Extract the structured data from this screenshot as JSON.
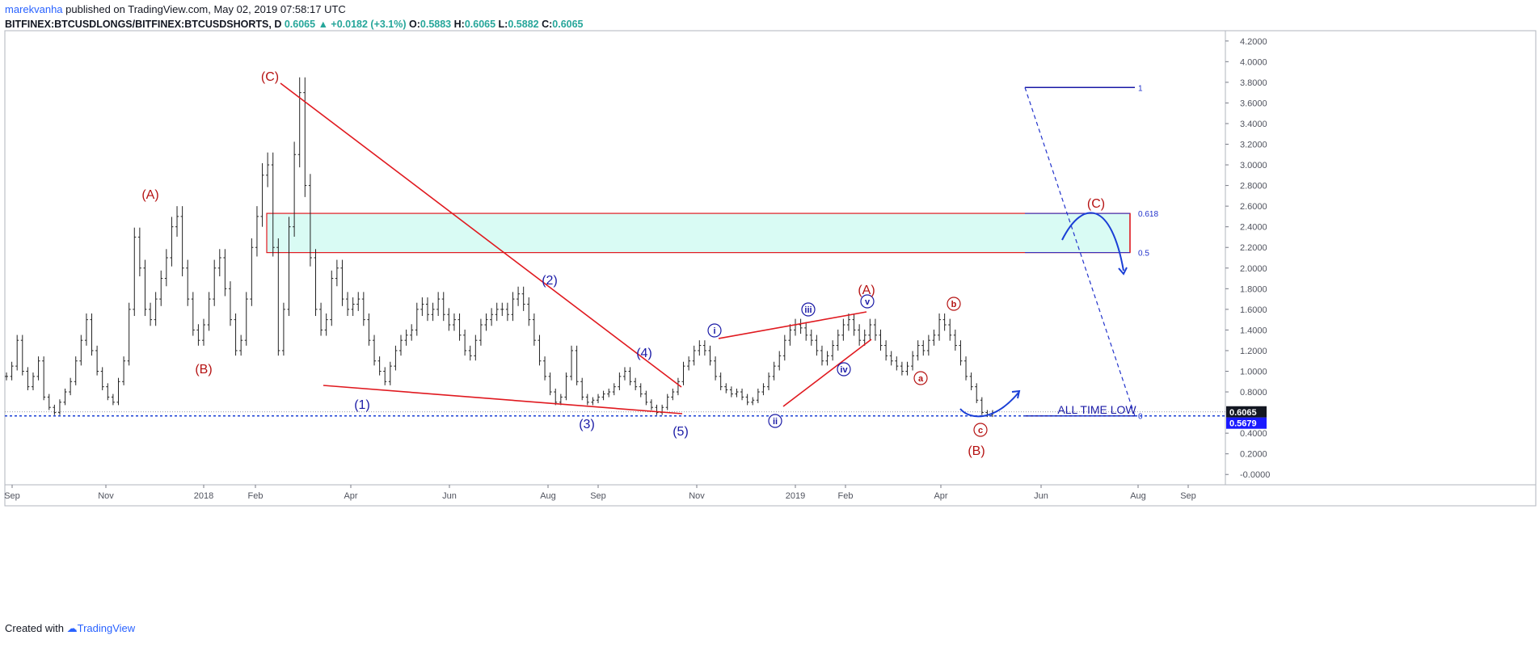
{
  "header": {
    "author": "marekvanha",
    "published_text": " published on TradingView.com, May 02, 2019 07:58:17 UTC",
    "symbol": "BITFINEX:BTCUSDLONGS/BITFINEX:BTCUSDSHORTS, D",
    "last": "0.6065",
    "change": "▲ +0.0182 (+3.1%)",
    "o_label": "O:",
    "o_value": "0.5883",
    "h_label": "H:",
    "h_value": "0.6065",
    "l_label": "L:",
    "l_value": "0.5882",
    "c_label": "C:",
    "c_value": "0.6065"
  },
  "footer": {
    "created_with": "Created with",
    "brand": "TradingView"
  },
  "colors": {
    "red": "#e0191f",
    "blue": "#1a1aa6",
    "zone_fill": "#d9fbf4",
    "dashed": "#2233cc",
    "price_line": "#1a3fd6"
  },
  "chart_data": {
    "type": "line",
    "subtype": "ohlc-bars",
    "ylim": [
      -0.1,
      4.3
    ],
    "y_ticks": [
      "4.2000",
      "4.0000",
      "3.8000",
      "3.6000",
      "3.4000",
      "3.2000",
      "3.0000",
      "2.8000",
      "2.6000",
      "2.4000",
      "2.2000",
      "2.0000",
      "1.8000",
      "1.6000",
      "1.4000",
      "1.2000",
      "1.0000",
      "0.8000",
      "0.4000",
      "0.2000",
      "-0.0000"
    ],
    "x_ticks": [
      "Sep",
      "Nov",
      "2018",
      "Feb",
      "Apr",
      "Jun",
      "Aug",
      "Sep",
      "Nov",
      "2019",
      "Feb",
      "Apr",
      "Jun",
      "Aug",
      "Sep"
    ],
    "series": [
      {
        "values": [
          0.95,
          1.05,
          1.3,
          1.0,
          0.85,
          0.95,
          1.1,
          0.75,
          0.65,
          0.6,
          0.7,
          0.8,
          0.9,
          1.1,
          1.3,
          1.5,
          1.2,
          1.0,
          0.85,
          0.75,
          0.7,
          0.9,
          1.1,
          1.6,
          2.3,
          2.0,
          1.6,
          1.5,
          1.7,
          1.9,
          2.1,
          2.4,
          2.5,
          2.0,
          1.7,
          1.4,
          1.3,
          1.45,
          1.7,
          2.0,
          2.1,
          1.8,
          1.5,
          1.2,
          1.3,
          1.7,
          2.2,
          2.5,
          2.9,
          3.0,
          2.2,
          1.2,
          1.6,
          2.4,
          3.1,
          3.7,
          2.8,
          2.1,
          1.6,
          1.4,
          1.5,
          1.9,
          2.0,
          1.7,
          1.6,
          1.65,
          1.7,
          1.5,
          1.3,
          1.1,
          1.0,
          0.9,
          1.05,
          1.2,
          1.3,
          1.35,
          1.4,
          1.6,
          1.65,
          1.55,
          1.6,
          1.7,
          1.55,
          1.45,
          1.5,
          1.35,
          1.2,
          1.15,
          1.3,
          1.45,
          1.5,
          1.55,
          1.6,
          1.6,
          1.55,
          1.7,
          1.75,
          1.65,
          1.5,
          1.3,
          1.1,
          0.95,
          0.8,
          0.7,
          0.75,
          0.95,
          1.2,
          0.9,
          0.75,
          0.7,
          0.72,
          0.75,
          0.78,
          0.8,
          0.85,
          0.95,
          1.0,
          0.9,
          0.85,
          0.78,
          0.7,
          0.65,
          0.6,
          0.65,
          0.75,
          0.8,
          0.9,
          1.05,
          1.1,
          1.2,
          1.25,
          1.2,
          1.1,
          0.95,
          0.85,
          0.82,
          0.78,
          0.8,
          0.75,
          0.7,
          0.72,
          0.8,
          0.85,
          0.95,
          1.05,
          1.15,
          1.3,
          1.4,
          1.45,
          1.42,
          1.35,
          1.3,
          1.2,
          1.1,
          1.15,
          1.25,
          1.35,
          1.45,
          1.5,
          1.4,
          1.3,
          1.35,
          1.45,
          1.35,
          1.25,
          1.15,
          1.1,
          1.05,
          1.0,
          1.05,
          1.15,
          1.25,
          1.2,
          1.3,
          1.35,
          1.5,
          1.45,
          1.35,
          1.25,
          1.1,
          0.95,
          0.85,
          0.72,
          0.6,
          0.58,
          0.6
        ]
      }
    ],
    "all_time_low": 0.5679,
    "current": 0.6065,
    "price_labels": [
      "0.6065",
      "0.5679"
    ],
    "fib": {
      "levels": [
        "1",
        "0.618",
        "0.5",
        "0"
      ],
      "values": [
        3.75,
        2.53,
        2.15,
        0.5679
      ]
    },
    "annotations": [
      {
        "text": "(C)",
        "color": "red"
      },
      {
        "text": "(A)",
        "color": "red"
      },
      {
        "text": "(B)",
        "color": "red"
      },
      {
        "text": "(1)",
        "color": "blue"
      },
      {
        "text": "(2)",
        "color": "blue"
      },
      {
        "text": "(3)",
        "color": "blue"
      },
      {
        "text": "(4)",
        "color": "blue"
      },
      {
        "text": "(5)",
        "color": "blue"
      },
      {
        "text": "i",
        "color": "blue",
        "circled": true
      },
      {
        "text": "ii",
        "color": "blue",
        "circled": true
      },
      {
        "text": "iii",
        "color": "blue",
        "circled": true
      },
      {
        "text": "iv",
        "color": "blue",
        "circled": true
      },
      {
        "text": "v",
        "color": "blue",
        "circled": true
      },
      {
        "text": "(A)",
        "color": "red"
      },
      {
        "text": "a",
        "color": "red",
        "circled": true
      },
      {
        "text": "b",
        "color": "red",
        "circled": true
      },
      {
        "text": "c",
        "color": "red",
        "circled": true
      },
      {
        "text": "(B)",
        "color": "red"
      },
      {
        "text": "(C)",
        "color": "red"
      },
      {
        "text": "ALL TIME LOW",
        "color": "blue"
      }
    ]
  }
}
